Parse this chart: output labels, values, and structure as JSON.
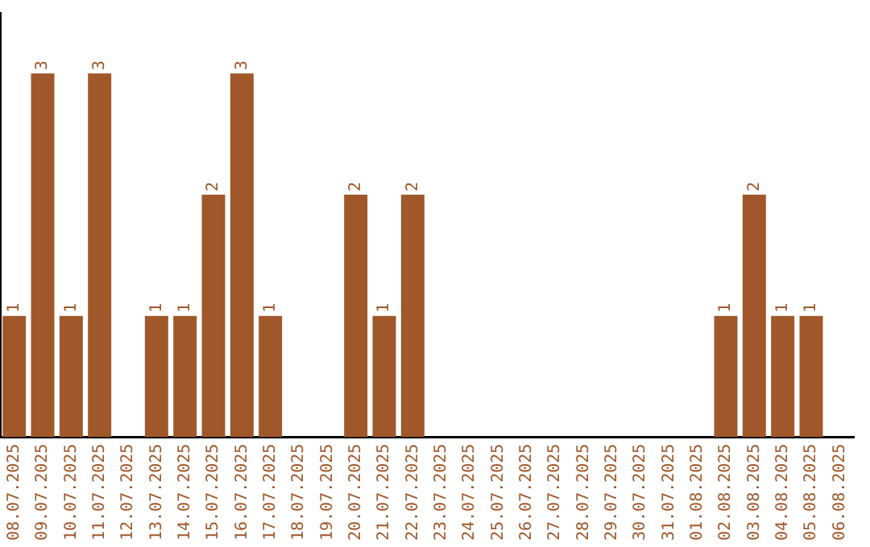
{
  "chart_data": {
    "type": "bar",
    "categories": [
      "08.07.2025",
      "09.07.2025",
      "10.07.2025",
      "11.07.2025",
      "12.07.2025",
      "13.07.2025",
      "14.07.2025",
      "15.07.2025",
      "16.07.2025",
      "17.07.2025",
      "18.07.2025",
      "19.07.2025",
      "20.07.2025",
      "21.07.2025",
      "22.07.2025",
      "23.07.2025",
      "24.07.2025",
      "25.07.2025",
      "26.07.2025",
      "27.07.2025",
      "28.07.2025",
      "29.07.2025",
      "30.07.2025",
      "31.07.2025",
      "01.08.2025",
      "02.08.2025",
      "03.08.2025",
      "04.08.2025",
      "05.08.2025",
      "06.08.2025"
    ],
    "values": [
      1,
      3,
      1,
      3,
      0,
      1,
      1,
      2,
      3,
      1,
      0,
      0,
      2,
      1,
      2,
      0,
      0,
      0,
      0,
      0,
      0,
      0,
      0,
      0,
      0,
      1,
      2,
      1,
      1,
      0
    ],
    "value_labels": [
      "1",
      "3",
      "1",
      "3",
      null,
      "1",
      "1",
      "2",
      "3",
      "1",
      null,
      null,
      "2",
      "1",
      "2",
      null,
      null,
      null,
      null,
      null,
      null,
      null,
      null,
      null,
      null,
      "1",
      "2",
      "1",
      "1",
      null
    ],
    "color": "#a0582a",
    "tick_labels": "x",
    "grid": false,
    "legend": false
  }
}
